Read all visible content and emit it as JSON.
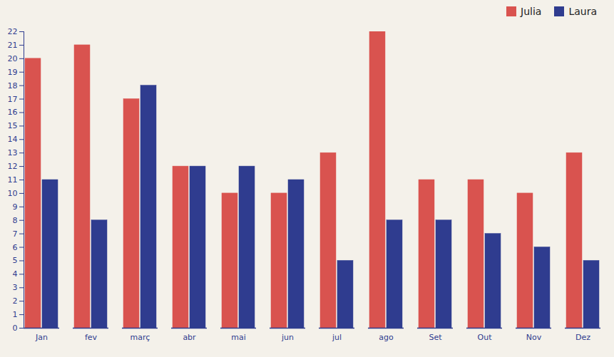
{
  "chart_data": {
    "type": "bar",
    "categories": [
      "Jan",
      "fev",
      "març",
      "abr",
      "mai",
      "jun",
      "jul",
      "ago",
      "Set",
      "Out",
      "Nov",
      "Dez"
    ],
    "series": [
      {
        "name": "Julia",
        "color": "#d9534f",
        "values": [
          20,
          21,
          17,
          12,
          10,
          10,
          13,
          22,
          11,
          11,
          10,
          13
        ]
      },
      {
        "name": "Laura",
        "color": "#2f3c8f",
        "values": [
          11,
          8,
          18,
          12,
          12,
          11,
          5,
          8,
          8,
          7,
          6,
          5
        ]
      }
    ],
    "ylim": [
      0,
      22
    ],
    "yticks": [
      0,
      1,
      2,
      3,
      4,
      5,
      6,
      7,
      8,
      9,
      10,
      11,
      12,
      13,
      14,
      15,
      16,
      17,
      18,
      19,
      20,
      21,
      22
    ],
    "grid": false,
    "legend": "top-right"
  }
}
